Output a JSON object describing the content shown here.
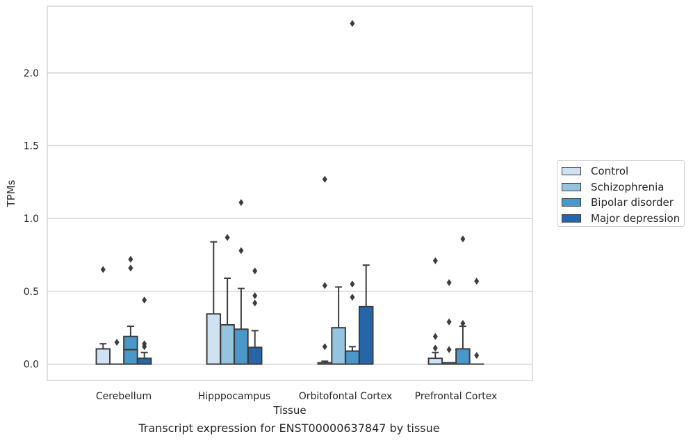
{
  "chart_data": {
    "type": "box",
    "xlabel": "Tissue",
    "ylabel": "TPMs",
    "caption": "Transcript expression for ENST00000637847 by tissue",
    "ylim": [
      -0.11,
      2.46
    ],
    "yticks": [
      "0.0",
      "0.5",
      "1.0",
      "1.5",
      "2.0"
    ],
    "ytick_values": [
      0.0,
      0.5,
      1.0,
      1.5,
      2.0
    ],
    "grid": true,
    "legend_position": "right",
    "categories": [
      "Cerebellum",
      "Hipppocampus",
      "Orbitofontal Cortex",
      "Prefrontal Cortex"
    ],
    "series": [
      {
        "name": "Control",
        "color": "#d0e1f2",
        "boxes": [
          {
            "q1": 0.0,
            "median": 0.0,
            "q3": 0.105,
            "whisker_low": 0.0,
            "whisker_high": 0.14,
            "outliers": [
              0.65
            ]
          },
          {
            "q1": 0.0,
            "median": 0.0,
            "q3": 0.345,
            "whisker_low": 0.0,
            "whisker_high": 0.84,
            "outliers": []
          },
          {
            "q1": 0.0,
            "median": 0.0,
            "q3": 0.01,
            "whisker_low": 0.0,
            "whisker_high": 0.02,
            "outliers": [
              0.12,
              0.54,
              1.27
            ]
          },
          {
            "q1": 0.0,
            "median": 0.0,
            "q3": 0.04,
            "whisker_low": 0.0,
            "whisker_high": 0.08,
            "outliers": [
              0.11,
              0.19,
              0.71
            ]
          }
        ]
      },
      {
        "name": "Schizophrenia",
        "color": "#94c4df",
        "boxes": [
          {
            "q1": 0.0,
            "median": 0.0,
            "q3": 0.0,
            "whisker_low": 0.0,
            "whisker_high": 0.0,
            "outliers": [
              0.15
            ]
          },
          {
            "q1": 0.0,
            "median": 0.0,
            "q3": 0.27,
            "whisker_low": 0.0,
            "whisker_high": 0.59,
            "outliers": [
              0.87
            ]
          },
          {
            "q1": 0.0,
            "median": 0.0,
            "q3": 0.25,
            "whisker_low": 0.0,
            "whisker_high": 0.53,
            "outliers": []
          },
          {
            "q1": 0.0,
            "median": 0.0,
            "q3": 0.01,
            "whisker_low": 0.0,
            "whisker_high": 0.01,
            "outliers": [
              0.1,
              0.29,
              0.56
            ]
          }
        ]
      },
      {
        "name": "Bipolar disorder",
        "color": "#4a98c9",
        "boxes": [
          {
            "q1": 0.0,
            "median": 0.1,
            "q3": 0.19,
            "whisker_low": 0.0,
            "whisker_high": 0.26,
            "outliers": [
              0.66,
              0.72
            ]
          },
          {
            "q1": 0.0,
            "median": 0.0,
            "q3": 0.24,
            "whisker_low": 0.0,
            "whisker_high": 0.52,
            "outliers": [
              0.78,
              1.11
            ]
          },
          {
            "q1": 0.0,
            "median": 0.0,
            "q3": 0.09,
            "whisker_low": 0.0,
            "whisker_high": 0.12,
            "outliers": [
              0.46,
              0.55,
              2.34
            ]
          },
          {
            "q1": 0.0,
            "median": 0.0,
            "q3": 0.105,
            "whisker_low": 0.0,
            "whisker_high": 0.26,
            "outliers": [
              0.28,
              0.86
            ]
          }
        ]
      },
      {
        "name": "Major depression",
        "color": "#2666a8",
        "boxes": [
          {
            "q1": 0.0,
            "median": 0.0,
            "q3": 0.04,
            "whisker_low": 0.0,
            "whisker_high": 0.08,
            "outliers": [
              0.12,
              0.14,
              0.44
            ]
          },
          {
            "q1": 0.0,
            "median": 0.0,
            "q3": 0.115,
            "whisker_low": 0.0,
            "whisker_high": 0.23,
            "outliers": [
              0.42,
              0.47,
              0.64
            ]
          },
          {
            "q1": 0.0,
            "median": 0.0,
            "q3": 0.395,
            "whisker_low": 0.0,
            "whisker_high": 0.68,
            "outliers": []
          },
          {
            "q1": 0.0,
            "median": 0.0,
            "q3": 0.0,
            "whisker_low": 0.0,
            "whisker_high": 0.0,
            "outliers": [
              0.06,
              0.57
            ]
          }
        ]
      }
    ]
  }
}
